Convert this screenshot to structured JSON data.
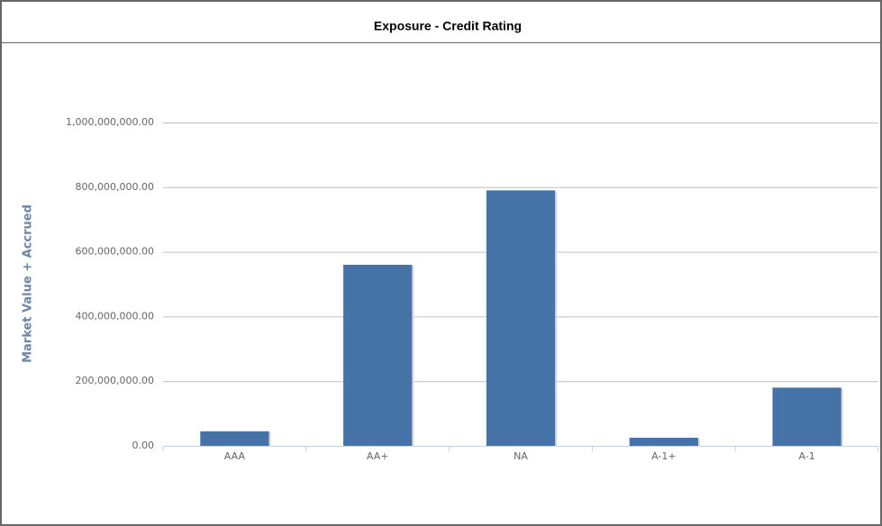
{
  "chart_data": {
    "type": "bar",
    "title": "Exposure - Credit Rating",
    "y_label": "Market Value + Accrued",
    "categories": [
      "AAA",
      "AA+",
      "NA",
      "A-1+",
      "A-1"
    ],
    "values": [
      45000000,
      560000000,
      790000000,
      25000000,
      180000000
    ],
    "color": "#4572a7",
    "ylim": [
      0,
      1000000000
    ],
    "yticks": [
      {
        "value": 0,
        "label": "0.00"
      },
      {
        "value": 200000000,
        "label": "200,000,000.00"
      },
      {
        "value": 400000000,
        "label": "400,000,000.00"
      },
      {
        "value": 600000000,
        "label": "600,000,000.00"
      },
      {
        "value": 800000000,
        "label": "800,000,000.00"
      },
      {
        "value": 1000000000,
        "label": "1,000,000,000.00"
      }
    ],
    "grid": true
  }
}
